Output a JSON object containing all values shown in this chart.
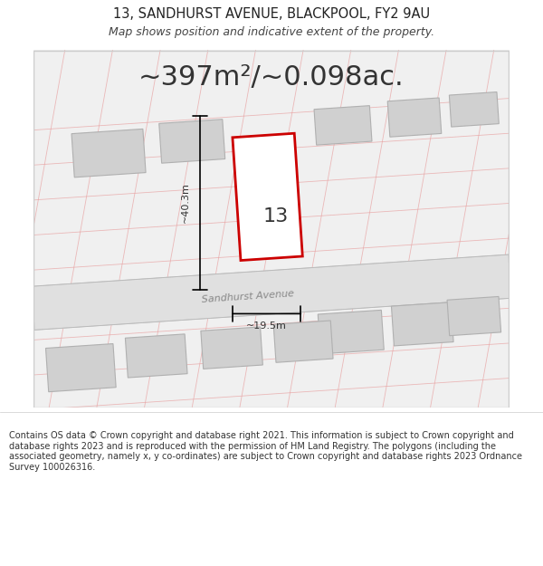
{
  "title_line1": "13, SANDHURST AVENUE, BLACKPOOL, FY2 9AU",
  "title_line2": "Map shows position and indicative extent of the property.",
  "area_text": "~397m²/~0.098ac.",
  "label_number": "13",
  "label_width": "~19.5m",
  "label_height": "~40.3m",
  "street_name": "Sandhurst Avenue",
  "footer_text": "Contains OS data © Crown copyright and database right 2021. This information is subject to Crown copyright and database rights 2023 and is reproduced with the permission of HM Land Registry. The polygons (including the associated geometry, namely x, y co-ordinates) are subject to Crown copyright and database rights 2023 Ordnance Survey 100026316.",
  "bg_color": "#f5f5f5",
  "map_bg_color": "#ffffff",
  "border_color": "#cccccc",
  "road_color": "#e8e8e8",
  "road_line_color": "#d0d0d0",
  "grid_line_color": "#f0a0a0",
  "building_color": "#d8d8d8",
  "building_border": "#bbbbbb",
  "plot_color": "#ffffff",
  "plot_border": "#cc0000",
  "dimension_line_color": "#000000",
  "title_fontsize": 10,
  "subtitle_fontsize": 9,
  "area_fontsize": 22,
  "footer_fontsize": 7.5
}
